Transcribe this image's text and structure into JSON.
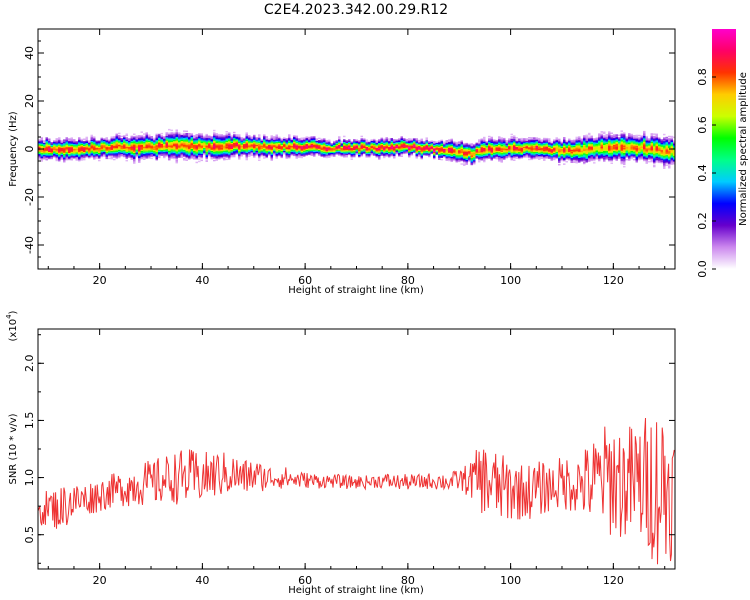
{
  "title": "C2E4.2023.342.00.29.R12",
  "chart_data": [
    {
      "type": "heatmap",
      "xlabel": "Height of straight line (km)",
      "ylabel": "Frequency (Hz)",
      "xlim": [
        8,
        132
      ],
      "ylim": [
        -50,
        50
      ],
      "xticks": [
        "20",
        "40",
        "60",
        "80",
        "100",
        "120"
      ],
      "xtick_values": [
        20,
        40,
        60,
        80,
        100,
        120
      ],
      "yticks": [
        "40",
        "20",
        "0",
        "-20",
        "-40"
      ],
      "ytick_values": [
        40,
        20,
        0,
        -20,
        -40
      ],
      "colorbar": {
        "label": "Normalized spectral amplitude",
        "ticks": [
          "0.0",
          "0.2",
          "0.4",
          "0.6",
          "0.8"
        ],
        "tick_values": [
          0.0,
          0.2,
          0.4,
          0.6,
          0.8
        ],
        "range": [
          0,
          1
        ],
        "colormap": [
          "#ffffff",
          "#cc88ee",
          "#6600cc",
          "#0000ff",
          "#00ccff",
          "#00ff88",
          "#00ff00",
          "#ccff00",
          "#ffcc00",
          "#ff3300",
          "#ff0066",
          "#ff00cc"
        ]
      },
      "ridge": {
        "description_free": true,
        "x": [
          8,
          15,
          20,
          25,
          30,
          35,
          40,
          45,
          50,
          55,
          60,
          65,
          70,
          75,
          80,
          85,
          90,
          92,
          95,
          100,
          105,
          110,
          115,
          120,
          125,
          132
        ],
        "center_freq": [
          0,
          0,
          0.5,
          1,
          1,
          1.5,
          1,
          1.5,
          1,
          1,
          1,
          0.5,
          0.5,
          0.5,
          1,
          0,
          -1,
          -2,
          0,
          0,
          0.5,
          -0.5,
          0,
          1,
          0.5,
          -1
        ],
        "halfwidth": [
          3,
          3,
          3,
          3.5,
          3.5,
          4,
          3.5,
          3.5,
          3,
          3,
          3,
          2.5,
          2.5,
          2.5,
          2.5,
          2.5,
          3,
          3,
          3,
          3,
          3,
          3.5,
          4,
          4,
          4,
          4
        ],
        "peak": [
          0.85,
          0.85,
          0.8,
          0.85,
          0.85,
          0.8,
          0.8,
          0.85,
          0.85,
          0.85,
          0.85,
          0.85,
          0.9,
          0.85,
          0.9,
          0.9,
          0.8,
          0.8,
          0.85,
          0.85,
          0.85,
          0.8,
          0.75,
          0.8,
          0.8,
          0.75
        ]
      }
    },
    {
      "type": "line",
      "xlabel": "Height of straight line (km)",
      "ylabel": "SNR (10 * v/v)",
      "multiplier_label": "(x10",
      "multiplier_exp": "4",
      "multiplier_close": ")",
      "xlim": [
        8,
        132
      ],
      "ylim": [
        0.2,
        2.3
      ],
      "xticks": [
        "20",
        "40",
        "60",
        "80",
        "100",
        "120"
      ],
      "xtick_values": [
        20,
        40,
        60,
        80,
        100,
        120
      ],
      "yticks": [
        "0.5",
        "1.0",
        "1.5",
        "2.0"
      ],
      "ytick_values": [
        0.5,
        1.0,
        1.5,
        2.0
      ],
      "series": [
        {
          "color": "#ee3333",
          "x": [
            8,
            10,
            12,
            14,
            16,
            18,
            20,
            22,
            24,
            26,
            28,
            30,
            32,
            34,
            36,
            38,
            40,
            42,
            44,
            46,
            48,
            50,
            52,
            54,
            56,
            58,
            60,
            62,
            64,
            66,
            68,
            70,
            72,
            74,
            76,
            78,
            80,
            82,
            84,
            86,
            88,
            90,
            92,
            94,
            96,
            98,
            100,
            102,
            104,
            106,
            108,
            110,
            112,
            114,
            116,
            118,
            120,
            122,
            124,
            126,
            128,
            130,
            132
          ],
          "mean": [
            0.7,
            0.75,
            0.72,
            0.78,
            0.8,
            0.82,
            0.85,
            0.88,
            0.9,
            0.92,
            0.95,
            0.95,
            0.97,
            1.0,
            1.0,
            1.0,
            1.0,
            1.02,
            1.03,
            1.03,
            1.0,
            1.02,
            1.0,
            1.0,
            1.0,
            0.98,
            0.98,
            0.97,
            0.97,
            0.97,
            0.96,
            0.96,
            0.96,
            0.97,
            0.97,
            0.96,
            0.96,
            0.96,
            0.97,
            0.97,
            0.96,
            0.98,
            0.98,
            1.0,
            0.95,
            0.9,
            0.9,
            0.88,
            0.88,
            0.9,
            0.92,
            0.95,
            0.95,
            0.95,
            0.95,
            1.0,
            1.0,
            0.95,
            0.95,
            0.95,
            0.95,
            0.9,
            0.9
          ],
          "amplitude": [
            0.15,
            0.15,
            0.2,
            0.2,
            0.15,
            0.15,
            0.15,
            0.15,
            0.15,
            0.18,
            0.2,
            0.2,
            0.22,
            0.22,
            0.25,
            0.25,
            0.22,
            0.22,
            0.2,
            0.18,
            0.16,
            0.15,
            0.12,
            0.1,
            0.1,
            0.08,
            0.07,
            0.07,
            0.06,
            0.06,
            0.06,
            0.06,
            0.06,
            0.06,
            0.07,
            0.07,
            0.07,
            0.07,
            0.07,
            0.08,
            0.08,
            0.1,
            0.15,
            0.3,
            0.35,
            0.3,
            0.3,
            0.25,
            0.25,
            0.25,
            0.2,
            0.25,
            0.25,
            0.3,
            0.4,
            0.45,
            0.55,
            0.5,
            0.55,
            0.6,
            0.7,
            0.8,
            0.5
          ]
        }
      ]
    }
  ]
}
